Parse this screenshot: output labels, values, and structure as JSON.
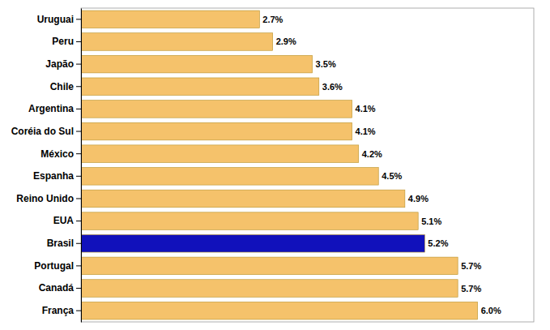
{
  "chart_data": {
    "type": "bar",
    "orientation": "horizontal",
    "categories": [
      "França",
      "Canadá",
      "Portugal",
      "Brasil",
      "EUA",
      "Reino Unido",
      "Espanha",
      "México",
      "Coréia do Sul",
      "Argentina",
      "Chile",
      "Japão",
      "Peru",
      "Uruguai"
    ],
    "values": [
      6.0,
      5.7,
      5.7,
      5.2,
      5.1,
      4.9,
      4.5,
      4.2,
      4.1,
      4.1,
      3.6,
      3.5,
      2.9,
      2.7
    ],
    "value_labels": [
      "6.0%",
      "5.7%",
      "5.7%",
      "5.2%",
      "5.1%",
      "4.9%",
      "4.5%",
      "4.2%",
      "4.1%",
      "4.1%",
      "3.6%",
      "3.5%",
      "2.9%",
      "2.7%"
    ],
    "colors": [
      "#F5C26B",
      "#F5C26B",
      "#F5C26B",
      "#1111BB",
      "#F5C26B",
      "#F5C26B",
      "#F5C26B",
      "#F5C26B",
      "#F5C26B",
      "#F5C26B",
      "#F5C26B",
      "#F5C26B",
      "#F5C26B",
      "#F5C26B"
    ],
    "xlim": [
      0,
      6.85
    ],
    "data_labels": true,
    "tick_labels": "y",
    "grid": false
  }
}
